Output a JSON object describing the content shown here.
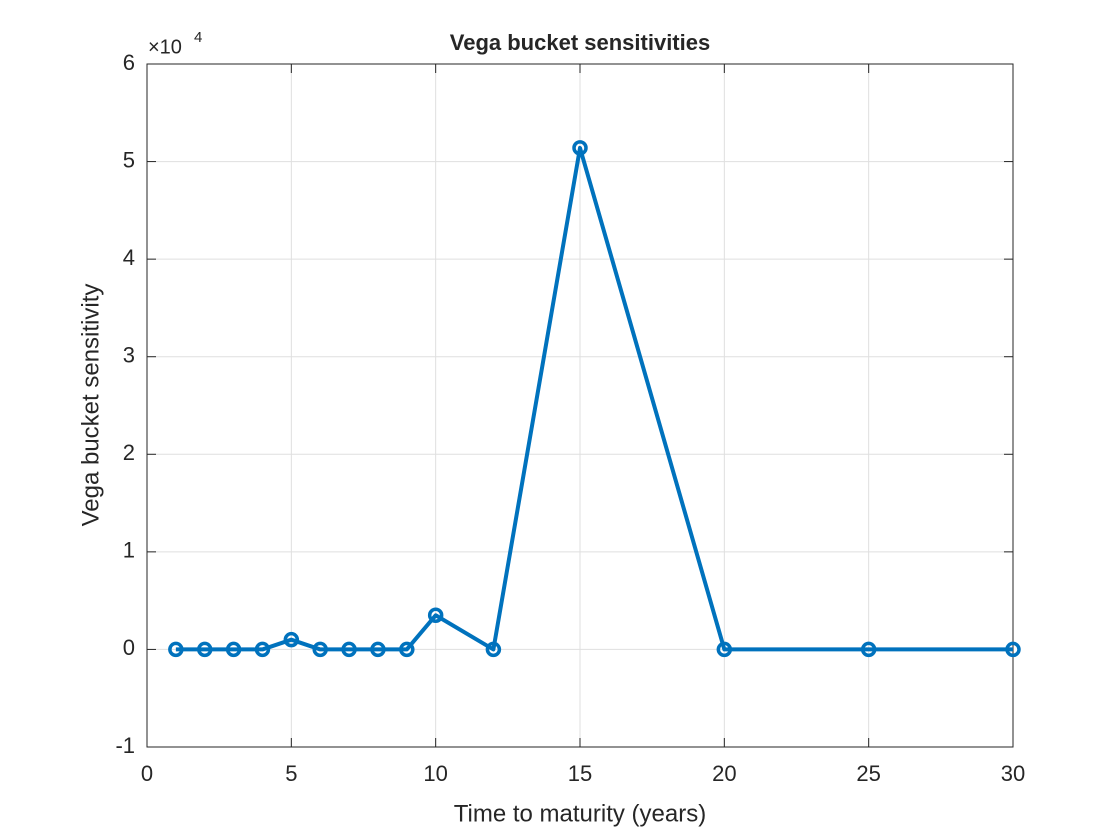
{
  "chart_data": {
    "type": "line",
    "title": "Vega bucket sensitivities",
    "x_label": "Time to maturity (years)",
    "y_label": "Vega bucket sensitivity",
    "y_scale_base": "×10",
    "y_scale_exponent": "4",
    "x": [
      1,
      2,
      3,
      4,
      5,
      6,
      7,
      8,
      9,
      10,
      12,
      15,
      20,
      25,
      30
    ],
    "values": [
      0,
      0,
      0,
      0,
      0.1,
      0,
      0,
      0,
      0,
      0.35,
      0,
      5.14,
      0,
      0,
      0
    ],
    "color": "#0072bd",
    "xlim": [
      0,
      30
    ],
    "xticks": [
      0,
      5,
      10,
      15,
      20,
      25,
      30
    ],
    "ylim": [
      -1,
      6
    ],
    "yticks": [
      -1,
      0,
      1,
      2,
      3,
      4,
      5,
      6
    ],
    "grid": true
  }
}
